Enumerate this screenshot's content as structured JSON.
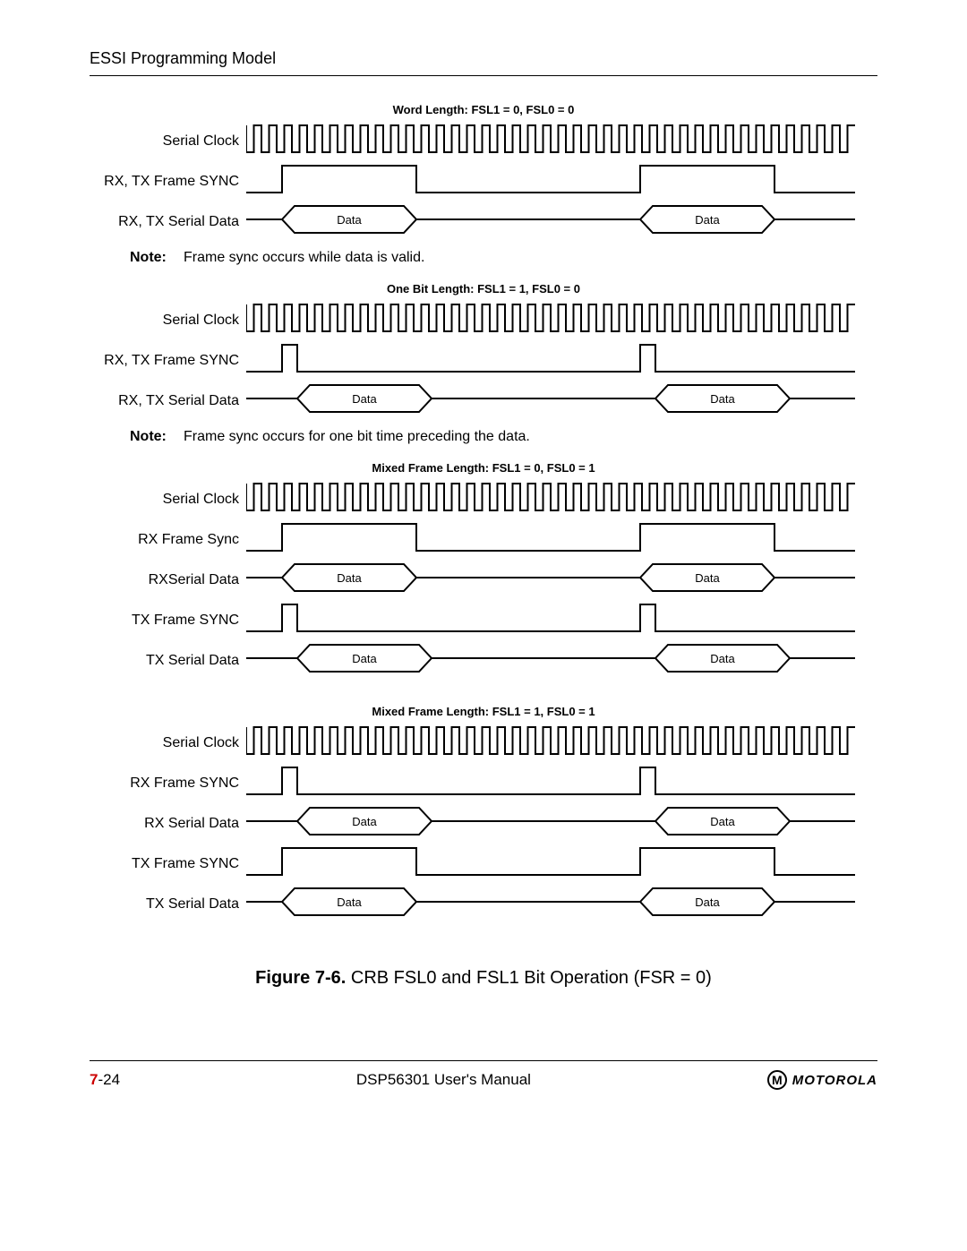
{
  "header": "ESSI Programming Model",
  "sections": [
    {
      "title": "Word Length: FSL1 = 0, FSL0 = 0",
      "rows": [
        {
          "label": "Serial Clock",
          "type": "clock"
        },
        {
          "label": "RX, TX Frame SYNC",
          "type": "sync_wide"
        },
        {
          "label": "RX, TX Serial Data",
          "type": "data",
          "data_label": "Data"
        }
      ],
      "note_label": "Note:",
      "note": "Frame sync occurs while data is valid."
    },
    {
      "title": "One Bit Length: FSL1 = 1, FSL0 = 0",
      "rows": [
        {
          "label": "Serial Clock",
          "type": "clock"
        },
        {
          "label": "RX, TX Frame SYNC",
          "type": "sync_narrow"
        },
        {
          "label": "RX, TX Serial Data",
          "type": "data2",
          "data_label": "Data"
        }
      ],
      "note_label": "Note:",
      "note": "Frame sync occurs for one bit time preceding the data."
    },
    {
      "title": "Mixed Frame Length: FSL1 = 0, FSL0 = 1",
      "rows": [
        {
          "label": "Serial Clock",
          "type": "clock"
        },
        {
          "label": "RX Frame Sync",
          "type": "sync_wide"
        },
        {
          "label": "RXSerial Data",
          "type": "data",
          "data_label": "Data"
        },
        {
          "label": "TX Frame SYNC",
          "type": "sync_narrow"
        },
        {
          "label": "TX Serial Data",
          "type": "data2",
          "data_label": "Data"
        }
      ]
    },
    {
      "title": "Mixed Frame Length: FSL1 = 1, FSL0 = 1",
      "rows": [
        {
          "label": "Serial Clock",
          "type": "clock"
        },
        {
          "label": "RX Frame SYNC",
          "type": "sync_narrow"
        },
        {
          "label": "RX Serial Data",
          "type": "data2",
          "data_label": "Data"
        },
        {
          "label": "TX Frame SYNC",
          "type": "sync_wide"
        },
        {
          "label": "TX Serial Data",
          "type": "data",
          "data_label": "Data"
        }
      ]
    }
  ],
  "caption_label": "Figure 7-6.",
  "caption_text": " CRB FSL0 and FSL1 Bit Operation (FSR = 0)",
  "footer": {
    "page_chapter": "7",
    "page_num": "-24",
    "manual": "DSP56301 User's Manual",
    "logo_letter": "M",
    "logo_text": "MOTOROLA"
  },
  "style": {
    "stroke": "#000000",
    "stroke_width": 2,
    "wave_height": 38,
    "wave_width": 680,
    "data_label_fontsize": 13
  }
}
